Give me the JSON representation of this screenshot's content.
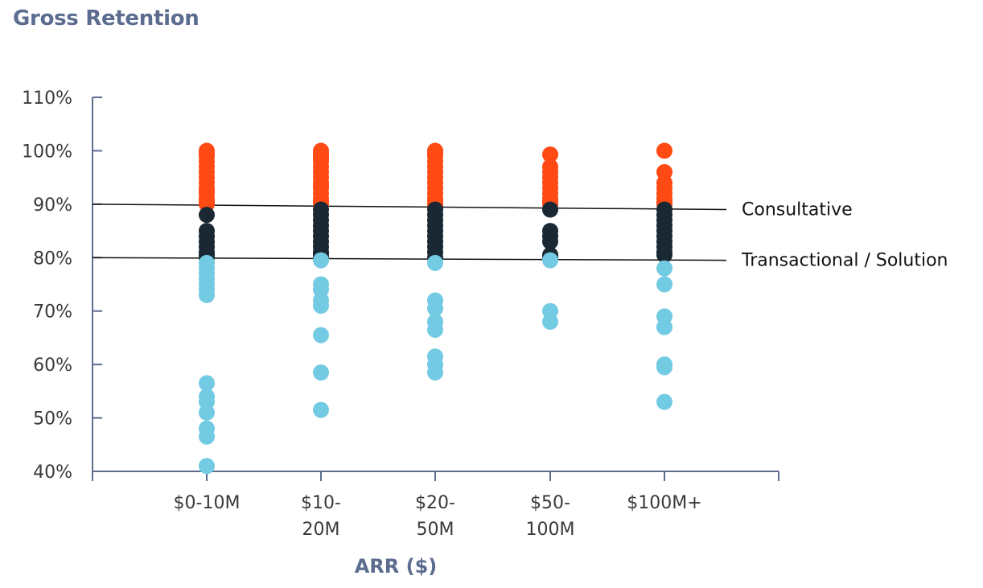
{
  "chart_data": {
    "type": "scatter",
    "title": "Gross Retention",
    "xlabel": "ARR ($)",
    "ylabel": "",
    "ylim": [
      40,
      110
    ],
    "y_ticks": [
      "40%",
      "50%",
      "60%",
      "70%",
      "80%",
      "90%",
      "100%",
      "110%"
    ],
    "y_tick_values": [
      40,
      50,
      60,
      70,
      80,
      90,
      100,
      110
    ],
    "categories": [
      [
        "$0-10M"
      ],
      [
        "$10-",
        "20M"
      ],
      [
        "$20-",
        "50M"
      ],
      [
        "$50-",
        "100M"
      ],
      [
        "$100M+"
      ]
    ],
    "series": [
      {
        "color": "#ff4a14",
        "values": [
          [
            100,
            99.5,
            99,
            98,
            97,
            96,
            95,
            94,
            93,
            92.5,
            92,
            91,
            90.5,
            90
          ],
          [
            100,
            99.5,
            99,
            98.5,
            98,
            97,
            96,
            95,
            94,
            93.5,
            93,
            92,
            91,
            90.5,
            90
          ],
          [
            100,
            99.5,
            99,
            98,
            97,
            96,
            95,
            94,
            93,
            92,
            91,
            90.5,
            90
          ],
          [
            99.3,
            97,
            96,
            95,
            94,
            93,
            92,
            91,
            90.5,
            90
          ],
          [
            100,
            96,
            94,
            93,
            92,
            91,
            90.5,
            90
          ]
        ]
      },
      {
        "color": "#192833",
        "values": [
          [
            88,
            85,
            84,
            83,
            82,
            81,
            80.5,
            80
          ],
          [
            89,
            88,
            87,
            86,
            85,
            84,
            83,
            82,
            81,
            80.5,
            80
          ],
          [
            89,
            88,
            87,
            86,
            85,
            84,
            83,
            82,
            81,
            80
          ],
          [
            89,
            85,
            84,
            83,
            80.5,
            80
          ],
          [
            89,
            88,
            87,
            86,
            85,
            84,
            83,
            82,
            81,
            80.5
          ]
        ]
      },
      {
        "color": "#72cae3",
        "values": [
          [
            79,
            78,
            77,
            76,
            75,
            74,
            73,
            56.5,
            54,
            53,
            51,
            48,
            46.5,
            41
          ],
          [
            79.5,
            75,
            74,
            72,
            71,
            65.5,
            58.5,
            51.5
          ],
          [
            79,
            72,
            70.5,
            68,
            66.5,
            61.5,
            60,
            58.5
          ],
          [
            79.5,
            70,
            68
          ],
          [
            78,
            75,
            69,
            67,
            60,
            59.5,
            53
          ]
        ]
      }
    ],
    "reference_lines": [
      {
        "label": "Consultative",
        "start": 90,
        "end": 89
      },
      {
        "label": "Transactional / Solution",
        "start": 80,
        "end": 79.5
      }
    ],
    "axis_color": "#5b6c8f",
    "grid": false
  }
}
